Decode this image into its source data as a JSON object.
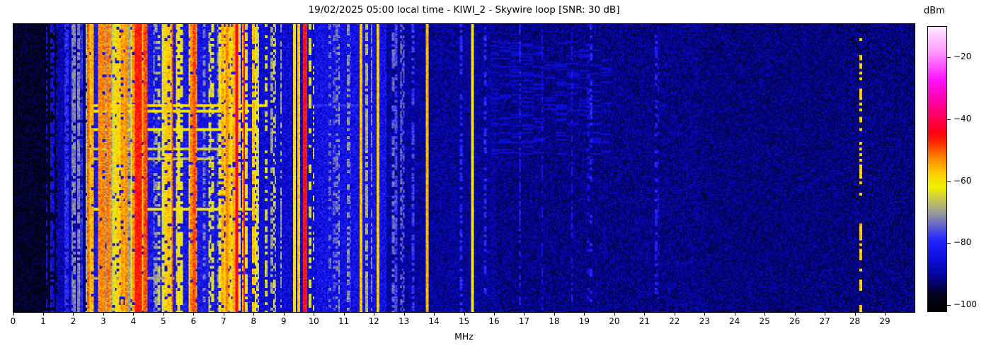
{
  "header": {
    "title": "19/02/2025 05:00 local time - KIWI_2 - Skywire loop [SNR: 30 dB]"
  },
  "x_axis": {
    "label": "MHz",
    "ticks": [
      0,
      1,
      2,
      3,
      4,
      5,
      6,
      7,
      8,
      9,
      10,
      11,
      12,
      13,
      14,
      15,
      16,
      17,
      18,
      19,
      20,
      21,
      22,
      23,
      24,
      25,
      26,
      27,
      28,
      29
    ],
    "range": [
      0,
      30
    ]
  },
  "colorbar": {
    "label": "dBm",
    "tick_values": [
      -20,
      -40,
      -60,
      -80,
      -100
    ],
    "vmin": -102,
    "vmax": -10
  },
  "chart_data": {
    "type": "heatmap",
    "subtype": "radio-spectrogram-waterfall",
    "title": "19/02/2025 05:00 local time - KIWI_2 - Skywire loop [SNR: 30 dB]",
    "xlabel": "MHz",
    "x_range": [
      0,
      30
    ],
    "value_unit": "dBm",
    "value_range": [
      -102,
      -10
    ],
    "legend_position": "right-colorbar",
    "grid": false,
    "seed": 20250219,
    "colormap": [
      [
        -102,
        "#000000"
      ],
      [
        -97,
        "#03031c"
      ],
      [
        -90,
        "#0505a8"
      ],
      [
        -84,
        "#1212e8"
      ],
      [
        -79,
        "#2525ff"
      ],
      [
        -74,
        "#6a6ac8"
      ],
      [
        -70,
        "#9d9d95"
      ],
      [
        -66,
        "#c8c855"
      ],
      [
        -62,
        "#f0f000"
      ],
      [
        -58,
        "#ffd400"
      ],
      [
        -52,
        "#ff8000"
      ],
      [
        -47,
        "#ff2000"
      ],
      [
        -44,
        "#ff0018"
      ],
      [
        -40,
        "#ff0050"
      ],
      [
        -34,
        "#ff00a8"
      ],
      [
        -27,
        "#ff14ff"
      ],
      [
        -18,
        "#ff9cff"
      ],
      [
        -10,
        "#ffeaff"
      ]
    ],
    "noise_floor_bands": [
      {
        "f0": 0.0,
        "f1": 1.45,
        "base": -96.5,
        "sigma": 5.0
      },
      {
        "f0": 1.45,
        "f1": 2.32,
        "base": -89.0,
        "sigma": 6.0
      },
      {
        "f0": 2.32,
        "f1": 2.44,
        "base": -93.0,
        "sigma": 4.0
      },
      {
        "f0": 2.44,
        "f1": 8.2,
        "base": -83.0,
        "sigma": 7.0
      },
      {
        "f0": 8.2,
        "f1": 10.05,
        "base": -86.0,
        "sigma": 6.5
      },
      {
        "f0": 10.05,
        "f1": 12.4,
        "base": -84.0,
        "sigma": 6.5
      },
      {
        "f0": 12.4,
        "f1": 13.65,
        "base": -90.0,
        "sigma": 5.5
      },
      {
        "f0": 13.65,
        "f1": 16.1,
        "base": -90.5,
        "sigma": 5.5
      },
      {
        "f0": 16.1,
        "f1": 23.0,
        "base": -91.5,
        "sigma": 5.5
      },
      {
        "f0": 23.0,
        "f1": 30.01,
        "base": -92.0,
        "sigma": 5.5
      }
    ],
    "stripe_clusters": [
      {
        "f0": 1.5,
        "f1": 2.3,
        "count": 9,
        "level": [
          -80,
          -70
        ],
        "width": [
          0.02,
          0.05
        ],
        "duty": 0.85,
        "seed": 1
      },
      {
        "f0": 2.44,
        "f1": 4.55,
        "count": 42,
        "level": [
          -70,
          -52
        ],
        "width": [
          0.02,
          0.07
        ],
        "duty": 0.92,
        "seed": 2
      },
      {
        "f0": 4.6,
        "f1": 4.95,
        "count": 6,
        "level": [
          -74,
          -64
        ],
        "width": [
          0.02,
          0.05
        ],
        "duty": 0.5,
        "seed": 3
      },
      {
        "f0": 4.95,
        "f1": 5.5,
        "count": 10,
        "level": [
          -67,
          -56
        ],
        "width": [
          0.02,
          0.06
        ],
        "duty": 0.85,
        "seed": 4
      },
      {
        "f0": 5.55,
        "f1": 5.85,
        "count": 3,
        "level": [
          -72,
          -62
        ],
        "width": [
          0.02,
          0.04
        ],
        "duty": 0.6,
        "seed": 5
      },
      {
        "f0": 5.85,
        "f1": 6.25,
        "count": 9,
        "level": [
          -62,
          -50
        ],
        "width": [
          0.02,
          0.06
        ],
        "duty": 0.9,
        "seed": 6
      },
      {
        "f0": 6.3,
        "f1": 6.85,
        "count": 5,
        "level": [
          -74,
          -63
        ],
        "width": [
          0.02,
          0.04
        ],
        "duty": 0.5,
        "seed": 7
      },
      {
        "f0": 6.85,
        "f1": 7.65,
        "count": 12,
        "level": [
          -64,
          -53
        ],
        "width": [
          0.02,
          0.06
        ],
        "duty": 0.88,
        "seed": 8
      },
      {
        "f0": 7.7,
        "f1": 8.2,
        "count": 8,
        "level": [
          -66,
          -56
        ],
        "width": [
          0.02,
          0.05
        ],
        "duty": 0.8,
        "seed": 9
      },
      {
        "f0": 8.25,
        "f1": 8.75,
        "count": 5,
        "level": [
          -70,
          -60
        ],
        "width": [
          0.02,
          0.04
        ],
        "duty": 0.5,
        "seed": 10
      },
      {
        "f0": 10.1,
        "f1": 11.35,
        "count": 7,
        "level": [
          -78,
          -70
        ],
        "width": [
          0.015,
          0.03
        ],
        "duty": 0.5,
        "seed": 11
      },
      {
        "f0": 12.45,
        "f1": 13.6,
        "count": 4,
        "level": [
          -79,
          -73
        ],
        "width": [
          0.015,
          0.03
        ],
        "duty": 0.6,
        "seed": 12
      },
      {
        "f0": 16.5,
        "f1": 21.5,
        "count": 6,
        "level": [
          -85,
          -80
        ],
        "width": [
          0.015,
          0.03
        ],
        "duty": 0.4,
        "seed": 13
      },
      {
        "f0": 1.0,
        "f1": 1.45,
        "count": 3,
        "level": [
          -88,
          -83
        ],
        "width": [
          0.02,
          0.04
        ],
        "duty": 0.6,
        "seed": 14
      }
    ],
    "carriers": [
      {
        "f": 1.28,
        "w": 0.03,
        "level": -84,
        "duty": 0.7
      },
      {
        "f": 2.49,
        "w": 0.06,
        "level": -51,
        "duty": 1
      },
      {
        "f": 2.88,
        "w": 0.05,
        "level": -53,
        "duty": 1
      },
      {
        "f": 3.17,
        "w": 0.05,
        "level": -52,
        "duty": 1
      },
      {
        "f": 3.77,
        "w": 0.05,
        "level": -53,
        "duty": 1
      },
      {
        "f": 4.18,
        "w": 0.18,
        "level": -46,
        "duty": 1
      },
      {
        "f": 4.4,
        "w": 0.06,
        "level": -49,
        "duty": 1
      },
      {
        "f": 5.29,
        "w": 0.04,
        "level": -50,
        "duty": 1
      },
      {
        "f": 6.03,
        "w": 0.05,
        "level": -49,
        "duty": 1
      },
      {
        "f": 6.52,
        "w": 0.03,
        "level": -64,
        "duty": 0.6
      },
      {
        "f": 7.12,
        "w": 0.04,
        "level": -53,
        "duty": 1
      },
      {
        "f": 7.42,
        "w": 0.03,
        "level": -42,
        "duty": 1
      },
      {
        "f": 7.68,
        "w": 0.03,
        "level": -44,
        "duty": 1
      },
      {
        "f": 8.9,
        "w": 0.025,
        "level": -70,
        "duty": 0.7
      },
      {
        "f": 9.34,
        "w": 0.04,
        "level": -60,
        "duty": 1
      },
      {
        "f": 9.5,
        "w": 0.04,
        "level": -57,
        "duty": 1
      },
      {
        "f": 9.72,
        "w": 0.07,
        "level": -45,
        "duty": 1
      },
      {
        "f": 9.87,
        "w": 0.03,
        "level": -63,
        "duty": 0.5
      },
      {
        "f": 10.0,
        "w": 0.03,
        "level": -65,
        "duty": 0.35
      },
      {
        "f": 11.55,
        "w": 0.05,
        "level": -57,
        "duty": 1
      },
      {
        "f": 11.75,
        "w": 0.03,
        "level": -69,
        "duty": 0.8
      },
      {
        "f": 11.93,
        "w": 0.025,
        "level": -72,
        "duty": 0.7
      },
      {
        "f": 12.15,
        "w": 0.05,
        "level": -58,
        "duty": 1
      },
      {
        "f": 12.75,
        "w": 0.02,
        "level": -77,
        "duty": 0.8
      },
      {
        "f": 13.0,
        "w": 0.02,
        "level": -76,
        "duty": 0.6
      },
      {
        "f": 13.3,
        "w": 0.02,
        "level": -78,
        "duty": 0.6
      },
      {
        "f": 13.78,
        "w": 0.03,
        "level": -56,
        "duty": 1
      },
      {
        "f": 14.9,
        "w": 0.02,
        "level": -80,
        "duty": 0.5
      },
      {
        "f": 15.28,
        "w": 0.03,
        "level": -62,
        "duty": 1
      },
      {
        "f": 15.7,
        "w": 0.02,
        "level": -80,
        "duty": 0.5
      },
      {
        "f": 17.6,
        "w": 0.02,
        "level": -84,
        "duty": 0.5
      },
      {
        "f": 28.2,
        "w": 0.05,
        "level": -79,
        "duty": 1
      },
      {
        "f": 28.2,
        "w": 0.05,
        "level": -58,
        "duty": 0.35
      }
    ],
    "time_streaks": [
      {
        "y": 0.28,
        "f0": 2.45,
        "f1": 8.4,
        "level": -60,
        "rows": 2
      },
      {
        "y": 0.298,
        "f0": 2.45,
        "f1": 7.8,
        "level": -62,
        "rows": 2
      },
      {
        "y": 0.28,
        "f0": 9.8,
        "f1": 11.6,
        "level": -79,
        "rows": 2
      },
      {
        "y": 0.363,
        "f0": 2.45,
        "f1": 8.1,
        "level": -61,
        "rows": 2
      },
      {
        "y": 0.429,
        "f0": 2.5,
        "f1": 7.6,
        "level": -66,
        "rows": 2
      },
      {
        "y": 0.461,
        "f0": 2.5,
        "f1": 6.6,
        "level": -68,
        "rows": 2
      },
      {
        "y": 0.639,
        "f0": 2.45,
        "f1": 8.0,
        "level": -62,
        "rows": 2
      },
      {
        "y": 0.878,
        "f0": 2.5,
        "f1": 5.3,
        "level": -70,
        "rows": 2
      }
    ],
    "dash_fields": [
      {
        "f0": 15.9,
        "f1": 19.8,
        "y0": 0.06,
        "y1": 0.45,
        "level": -86.5,
        "density": 0.22
      }
    ]
  }
}
